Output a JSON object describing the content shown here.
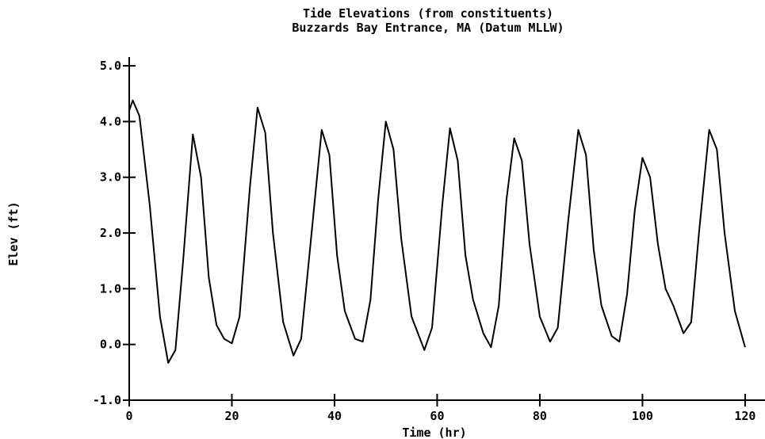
{
  "chart_data": {
    "type": "line",
    "title": "Tide Elevations (from constituents)",
    "subtitle": "Buzzards Bay Entrance, MA (Datum MLLW)",
    "xlabel": "Time (hr)",
    "ylabel": "Elev (ft)",
    "color": "#000000",
    "x": [
      0,
      0.7,
      2,
      4,
      6,
      7.6,
      9,
      10.5,
      12.4,
      14,
      15.5,
      17,
      18.5,
      20,
      21.5,
      23.5,
      25,
      26.5,
      28,
      30,
      32,
      33.5,
      35,
      37.5,
      39,
      40.5,
      42,
      44,
      45.5,
      47,
      48.5,
      50,
      51.5,
      53,
      55,
      57.5,
      59,
      61,
      62.5,
      64,
      65.5,
      67,
      69,
      70.5,
      72,
      73.5,
      75,
      76.5,
      78,
      80,
      82,
      83.5,
      85.5,
      87.5,
      89,
      90.5,
      92,
      94,
      95.5,
      97,
      98.5,
      100,
      101.5,
      103,
      104.5,
      106,
      108,
      109.5,
      111,
      113,
      114.5,
      116,
      118,
      120
    ],
    "values": [
      4.2,
      4.38,
      4.1,
      2.5,
      0.5,
      -0.33,
      -0.1,
      1.5,
      3.77,
      3.0,
      1.2,
      0.35,
      0.1,
      0.02,
      0.5,
      2.8,
      4.25,
      3.8,
      2.0,
      0.4,
      -0.2,
      0.1,
      1.5,
      3.85,
      3.4,
      1.6,
      0.6,
      0.1,
      0.05,
      0.8,
      2.6,
      4.0,
      3.5,
      1.9,
      0.5,
      -0.1,
      0.3,
      2.5,
      3.88,
      3.3,
      1.6,
      0.8,
      0.2,
      -0.05,
      0.7,
      2.6,
      3.7,
      3.3,
      1.8,
      0.5,
      0.05,
      0.3,
      2.2,
      3.85,
      3.4,
      1.7,
      0.7,
      0.15,
      0.05,
      0.9,
      2.4,
      3.35,
      3.0,
      1.8,
      1.0,
      0.7,
      0.2,
      0.4,
      2.0,
      3.85,
      3.5,
      2.0,
      0.6,
      -0.05
    ],
    "xlim": [
      0,
      124.8
    ],
    "xticks": [
      0,
      20,
      40,
      60,
      80,
      100,
      120
    ],
    "ylim": [
      -1,
      5.2
    ],
    "yticks": [
      {
        "value": -1,
        "label": "-1.0"
      },
      {
        "value": 0,
        "label": "0.0"
      },
      {
        "value": 1,
        "label": "1.0"
      },
      {
        "value": 2,
        "label": "2.0"
      },
      {
        "value": 3,
        "label": "3.0"
      },
      {
        "value": 4,
        "label": "4.0"
      },
      {
        "value": 5,
        "label": "5.0"
      }
    ]
  }
}
